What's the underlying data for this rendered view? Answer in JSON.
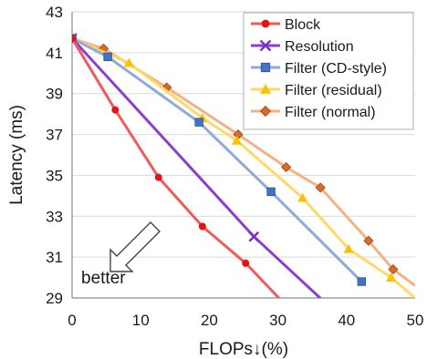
{
  "chart_data": {
    "type": "line",
    "title": "",
    "xlabel": "FLOPs↓(%)",
    "ylabel": "Latency (ms)",
    "xlim": [
      0,
      50
    ],
    "ylim": [
      29,
      43
    ],
    "x_ticks": [
      "0",
      "10",
      "20",
      "30",
      "40",
      "50"
    ],
    "y_ticks": [
      "29",
      "31",
      "33",
      "35",
      "37",
      "39",
      "41",
      "43"
    ],
    "grid": "horizontal",
    "legend_position": "top-right",
    "annotation": {
      "text": "better",
      "arrow": "down-left"
    },
    "series": [
      {
        "name": "Block",
        "color": "#f05a5a",
        "marker": "circle",
        "marker_color": "#e81010",
        "points": [
          [
            0,
            41.7
          ],
          [
            6.3,
            38.2
          ],
          [
            12.6,
            34.9
          ],
          [
            19.0,
            32.5
          ],
          [
            25.3,
            30.7
          ],
          [
            30.7,
            28.8
          ]
        ]
      },
      {
        "name": "Resolution",
        "color": "#8a3fcf",
        "marker": "x",
        "marker_color": "#7a30c0",
        "points": [
          [
            0,
            41.7
          ],
          [
            26.5,
            32.0
          ],
          [
            36.8,
            28.8
          ]
        ]
      },
      {
        "name": "Filter (CD-style)",
        "color": "#8eaadb",
        "marker": "square",
        "marker_color": "#4472c4",
        "points": [
          [
            0,
            41.7
          ],
          [
            5.2,
            40.8
          ],
          [
            18.5,
            37.6
          ],
          [
            29.0,
            34.2
          ],
          [
            42.2,
            29.8
          ]
        ]
      },
      {
        "name": "Filter (residual)",
        "color": "#ffd966",
        "marker": "triangle",
        "marker_color": "#ffc000",
        "points": [
          [
            0,
            41.7
          ],
          [
            8.3,
            40.5
          ],
          [
            19.0,
            37.8
          ],
          [
            24.0,
            36.7
          ],
          [
            33.6,
            33.9
          ],
          [
            40.3,
            31.4
          ],
          [
            46.5,
            30.0
          ],
          [
            50.0,
            29.0
          ]
        ]
      },
      {
        "name": "Filter (normal)",
        "color": "#f4b183",
        "marker": "diamond",
        "marker_color": "#d86a2a",
        "points": [
          [
            0,
            41.7
          ],
          [
            4.6,
            41.2
          ],
          [
            13.8,
            39.3
          ],
          [
            24.2,
            37.0
          ],
          [
            31.2,
            35.4
          ],
          [
            36.2,
            34.4
          ],
          [
            43.2,
            31.8
          ],
          [
            46.8,
            30.4
          ],
          [
            50.0,
            29.6
          ]
        ]
      }
    ]
  }
}
